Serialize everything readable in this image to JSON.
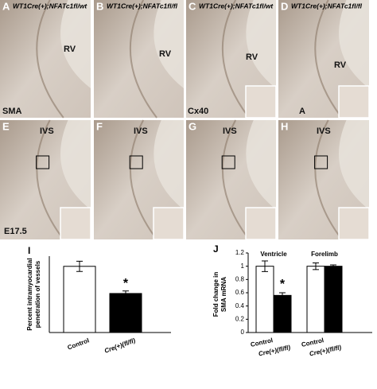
{
  "panels": [
    {
      "letter": "A",
      "header": "WT1Cre(+);NFATc1fl/wt",
      "labels": [
        "RV",
        "SMA"
      ]
    },
    {
      "letter": "B",
      "header": "WT1Cre(+);NFATc1fl/fl",
      "labels": [
        "RV"
      ]
    },
    {
      "letter": "C",
      "header": "WT1Cre(+);NFATc1fl/wt",
      "labels": [
        "RV",
        "Cx40"
      ]
    },
    {
      "letter": "D",
      "header": "WT1Cre(+);NFATc1fl/fl",
      "labels": [
        "RV",
        "A"
      ]
    },
    {
      "letter": "E",
      "labels": [
        "IVS",
        "E17.5"
      ]
    },
    {
      "letter": "F",
      "labels": [
        "IVS"
      ]
    },
    {
      "letter": "G",
      "labels": [
        "IVS"
      ]
    },
    {
      "letter": "H",
      "labels": [
        "IVS"
      ]
    }
  ],
  "chart_data": [
    {
      "type": "bar",
      "panel": "I",
      "ylabel": [
        "Percent intramyocardial",
        "penetration of vessels"
      ],
      "categories": [
        "Control",
        "Cre(+)(fl/fl)"
      ],
      "values": [
        39,
        23
      ],
      "errors": [
        3,
        1.5
      ],
      "colors": [
        "#ffffff",
        "#000000"
      ],
      "ylim": [
        0,
        45
      ],
      "annotation": "*"
    },
    {
      "type": "grouped-bar",
      "panel": "J",
      "ylabel": [
        "Fold change in",
        "SMA mRNA"
      ],
      "categories": [
        "Ventricle",
        "Forelimb"
      ],
      "series": [
        {
          "name": "Control",
          "color": "#ffffff",
          "values": [
            1,
            1
          ],
          "errors": [
            0.08,
            0.05
          ]
        },
        {
          "name": "Cre(+)(fl/fl)",
          "color": "#000000",
          "values": [
            0.56,
            1
          ],
          "errors": [
            0.04,
            0.02
          ]
        }
      ],
      "ylim": [
        0,
        1.2
      ],
      "yticks": [
        0,
        0.2,
        0.4,
        0.6,
        0.8,
        1,
        1.2
      ],
      "annotation": "*"
    }
  ]
}
